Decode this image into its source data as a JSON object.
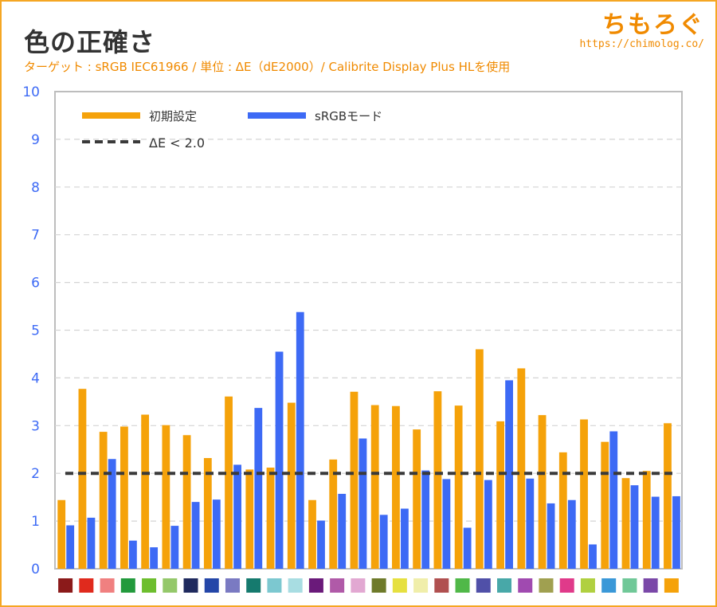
{
  "header": {
    "title": "色の正確さ",
    "subtitle": "ターゲット : sRGB IEC61966 / 単位 : ΔE（dE2000）/ Calibrite Display Plus HLを使用",
    "brand_name": "ちもろぐ",
    "brand_url": "https://chimolog.co/"
  },
  "chart_data": {
    "type": "bar",
    "title": "色の正確さ",
    "xlabel": "",
    "ylabel": "",
    "ylim": [
      0,
      10
    ],
    "yticks": [
      0,
      1,
      2,
      3,
      4,
      5,
      6,
      7,
      8,
      9,
      10
    ],
    "grid": true,
    "legend_position": "top-left",
    "categories": [
      "#8b1a1a",
      "#e02a1d",
      "#f08080",
      "#229a3c",
      "#6dbe2e",
      "#94c86a",
      "#1f2a5e",
      "#2446a8",
      "#7a7ac2",
      "#157a6e",
      "#7cc8d0",
      "#a8dde2",
      "#6a1a7a",
      "#b05aa8",
      "#e2a8d2",
      "#6e7a2a",
      "#e6e040",
      "#f0eeaa",
      "#b05050",
      "#50b848",
      "#5050a8",
      "#48a8a8",
      "#a04ab0",
      "#a0a050",
      "#e03a8a",
      "#b0d040",
      "#3a98d8",
      "#70c898",
      "#7a48a8",
      "#f5a20a"
    ],
    "series": [
      {
        "name": "初期設定",
        "color": "#f5a20a",
        "values": [
          1.44,
          3.77,
          2.87,
          2.98,
          3.23,
          3.01,
          2.8,
          2.32,
          3.61,
          2.08,
          2.12,
          3.48,
          1.44,
          2.29,
          3.71,
          3.43,
          3.41,
          2.92,
          3.72,
          3.42,
          4.6,
          3.09,
          4.2,
          3.22,
          2.44,
          3.13,
          2.66,
          1.9,
          2.05,
          3.05
        ]
      },
      {
        "name": "sRGBモード",
        "color": "#3d6af5",
        "values": [
          0.91,
          1.07,
          2.3,
          0.59,
          0.45,
          0.9,
          1.4,
          1.45,
          2.18,
          3.37,
          4.55,
          5.38,
          1.01,
          1.57,
          2.73,
          1.13,
          1.26,
          2.06,
          1.88,
          0.86,
          1.86,
          3.95,
          1.89,
          1.37,
          1.44,
          0.51,
          2.88,
          1.75,
          1.51,
          1.52
        ]
      }
    ],
    "threshold": {
      "label": "ΔE < 2.0",
      "value": 2.0,
      "color": "#3a3a3a"
    }
  }
}
